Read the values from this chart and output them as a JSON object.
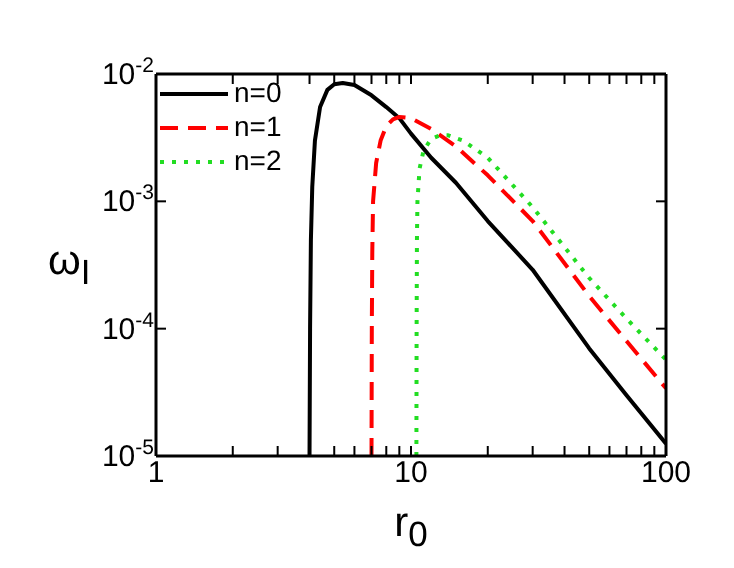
{
  "chart_data": {
    "type": "line",
    "xlabel": "r$_{0}$",
    "ylabel": "ω$_{I}$",
    "log": "xy",
    "xlim": [
      1,
      100
    ],
    "ylim": [
      1e-05,
      0.01
    ],
    "xticks": [
      1,
      {
        "value": 2,
        "label": null
      },
      {
        "value": 3,
        "label": null
      },
      {
        "value": 4,
        "label": null
      },
      {
        "value": 5,
        "label": null
      },
      {
        "value": 6,
        "label": null
      },
      {
        "value": 7,
        "label": null
      },
      {
        "value": 8,
        "label": null
      },
      {
        "value": 9,
        "label": null
      },
      10,
      {
        "value": 20,
        "label": null
      },
      {
        "value": 30,
        "label": null
      },
      {
        "value": 40,
        "label": null
      },
      {
        "value": 50,
        "label": null
      },
      {
        "value": 60,
        "label": null
      },
      {
        "value": 70,
        "label": null
      },
      {
        "value": 80,
        "label": null
      },
      {
        "value": 90,
        "label": null
      },
      100
    ],
    "yticks": [
      {
        "value": 1e-05,
        "label": "10$^{-5}$"
      },
      {
        "value": 0.0001,
        "label": "10$^{-4}$"
      },
      {
        "value": 0.001,
        "label": "10$^{-3}$"
      },
      {
        "value": 0.01,
        "label": "10$^{-2}$"
      }
    ],
    "legend": "top left",
    "grid": false,
    "series": [
      {
        "name": "n=0",
        "color": "#000000",
        "line_style": "solid",
        "x": [
          4,
          4.02,
          4.05,
          4.1,
          4.2,
          4.4,
          4.7,
          5,
          5.4,
          6,
          7,
          8,
          9,
          10,
          12,
          15,
          20,
          30,
          50,
          70,
          100
        ],
        "values": [
          1e-05,
          0.0001,
          0.0005,
          0.0013,
          0.003,
          0.0055,
          0.0075,
          0.0083,
          0.0085,
          0.0082,
          0.0068,
          0.0055,
          0.0045,
          0.0034,
          0.0022,
          0.0014,
          0.0007,
          0.00029,
          7e-05,
          3e-05,
          1.25e-05
        ]
      },
      {
        "name": "n=1",
        "color": "#ff0000",
        "line_style": "dashed",
        "x": [
          7,
          7.02,
          7.05,
          7.1,
          7.3,
          7.6,
          8,
          8.5,
          9,
          10,
          12,
          15,
          20,
          30,
          50,
          70,
          100
        ],
        "values": [
          1e-05,
          0.0001,
          0.0004,
          0.001,
          0.002,
          0.003,
          0.0039,
          0.0044,
          0.0046,
          0.0045,
          0.0037,
          0.0027,
          0.0016,
          0.0007,
          0.00018,
          8e-05,
          3.4e-05
        ]
      },
      {
        "name": "n=2",
        "color": "#22dd22",
        "line_style": "dotted",
        "x": [
          10.5,
          10.52,
          10.55,
          10.6,
          10.8,
          11.2,
          12,
          13,
          14,
          16,
          20,
          30,
          50,
          70,
          100
        ],
        "values": [
          1e-05,
          0.0001,
          0.0005,
          0.001,
          0.0018,
          0.0025,
          0.0031,
          0.0033,
          0.0033,
          0.003,
          0.0022,
          0.0009,
          0.00025,
          0.00012,
          5.7e-05
        ]
      }
    ]
  }
}
